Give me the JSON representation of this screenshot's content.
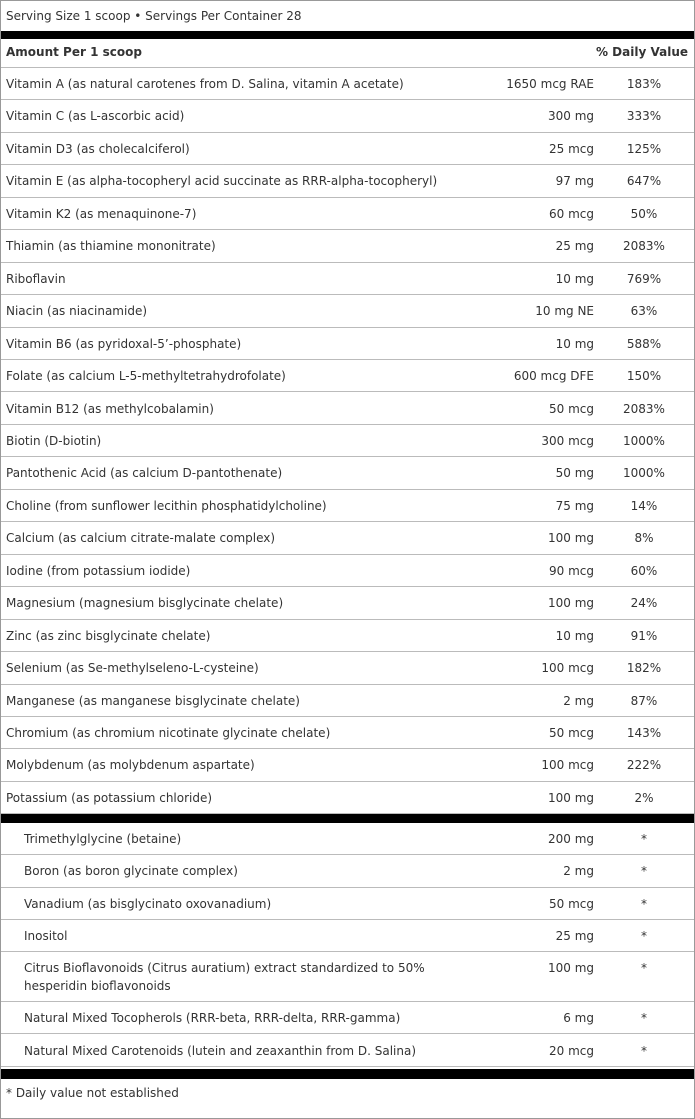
{
  "header": {
    "serving": "Serving Size 1 scoop • Servings Per Container 28"
  },
  "table": {
    "columns": [
      "Amount Per 1 scoop",
      "% Daily Value"
    ],
    "rows": [
      [
        "Vitamin A (as natural carotenes from D. Salina, vitamin A acetate)",
        "1650 mcg RAE",
        "183%"
      ],
      [
        "Vitamin C (as L-ascorbic acid)",
        "300 mg",
        "333%"
      ],
      [
        "Vitamin D3 (as cholecalciferol)",
        "25 mcg",
        "125%"
      ],
      [
        "Vitamin E (as alpha-tocopheryl acid succinate as RRR-alpha-tocopheryl)",
        "97 mg",
        "647%"
      ],
      [
        "Vitamin K2 (as menaquinone-7)",
        "60 mcg",
        "50%"
      ],
      [
        "Thiamin (as thiamine mononitrate)",
        "25 mg",
        "2083%"
      ],
      [
        "Riboflavin",
        "10 mg",
        "769%"
      ],
      [
        "Niacin (as niacinamide)",
        "10 mg NE",
        "63%"
      ],
      [
        "Vitamin B6 (as pyridoxal-5’-phosphate)",
        "10 mg",
        "588%"
      ],
      [
        "Folate (as calcium L-5-methyltetrahydrofolate)",
        "600 mcg DFE",
        "150%"
      ],
      [
        "Vitamin B12 (as methylcobalamin)",
        "50 mcg",
        "2083%"
      ],
      [
        "Biotin (D-biotin)",
        "300 mcg",
        "1000%"
      ],
      [
        "Pantothenic Acid (as calcium D-pantothenate)",
        "50 mg",
        "1000%"
      ],
      [
        "Choline (from sunflower lecithin phosphatidylcholine)",
        "75 mg",
        "14%"
      ],
      [
        "Calcium (as calcium citrate-malate complex)",
        "100 mg",
        "8%"
      ],
      [
        "Iodine (from potassium iodide)",
        "90 mcg",
        "60%"
      ],
      [
        "Magnesium (magnesium bisglycinate chelate)",
        "100 mg",
        "24%"
      ],
      [
        "Zinc (as zinc bisglycinate chelate)",
        "10 mg",
        "91%"
      ],
      [
        "Selenium (as Se-methylseleno-L-cysteine)",
        "100 mcg",
        "182%"
      ],
      [
        "Manganese (as manganese bisglycinate chelate)",
        "2 mg",
        "87%"
      ],
      [
        "Chromium (as chromium nicotinate glycinate chelate)",
        "50 mcg",
        "143%"
      ],
      [
        "Molybdenum (as molybdenum aspartate)",
        "100 mcg",
        "222%"
      ],
      [
        "Potassium (as potassium chloride)",
        "100 mg",
        "2%"
      ]
    ],
    "other_rows": [
      [
        "Trimethylglycine (betaine)",
        "200 mg",
        "*"
      ],
      [
        "Boron (as boron glycinate complex)",
        "2 mg",
        "*"
      ],
      [
        "Vanadium (as bisglycinato oxovanadium)",
        "50 mcg",
        "*"
      ],
      [
        "Inositol",
        "25 mg",
        "*"
      ],
      [
        "Citrus Bioflavonoids (Citrus auratium) extract standardized to 50% hesperidin bioflavonoids",
        "100 mg",
        "*"
      ],
      [
        "Natural Mixed Tocopherols (RRR-beta, RRR-delta, RRR-gamma)",
        "6 mg",
        "*"
      ],
      [
        "Natural Mixed Carotenoids (lutein and zeaxanthin from D. Salina)",
        "20 mcg",
        "*"
      ]
    ]
  },
  "footnote": "* Daily value not established"
}
